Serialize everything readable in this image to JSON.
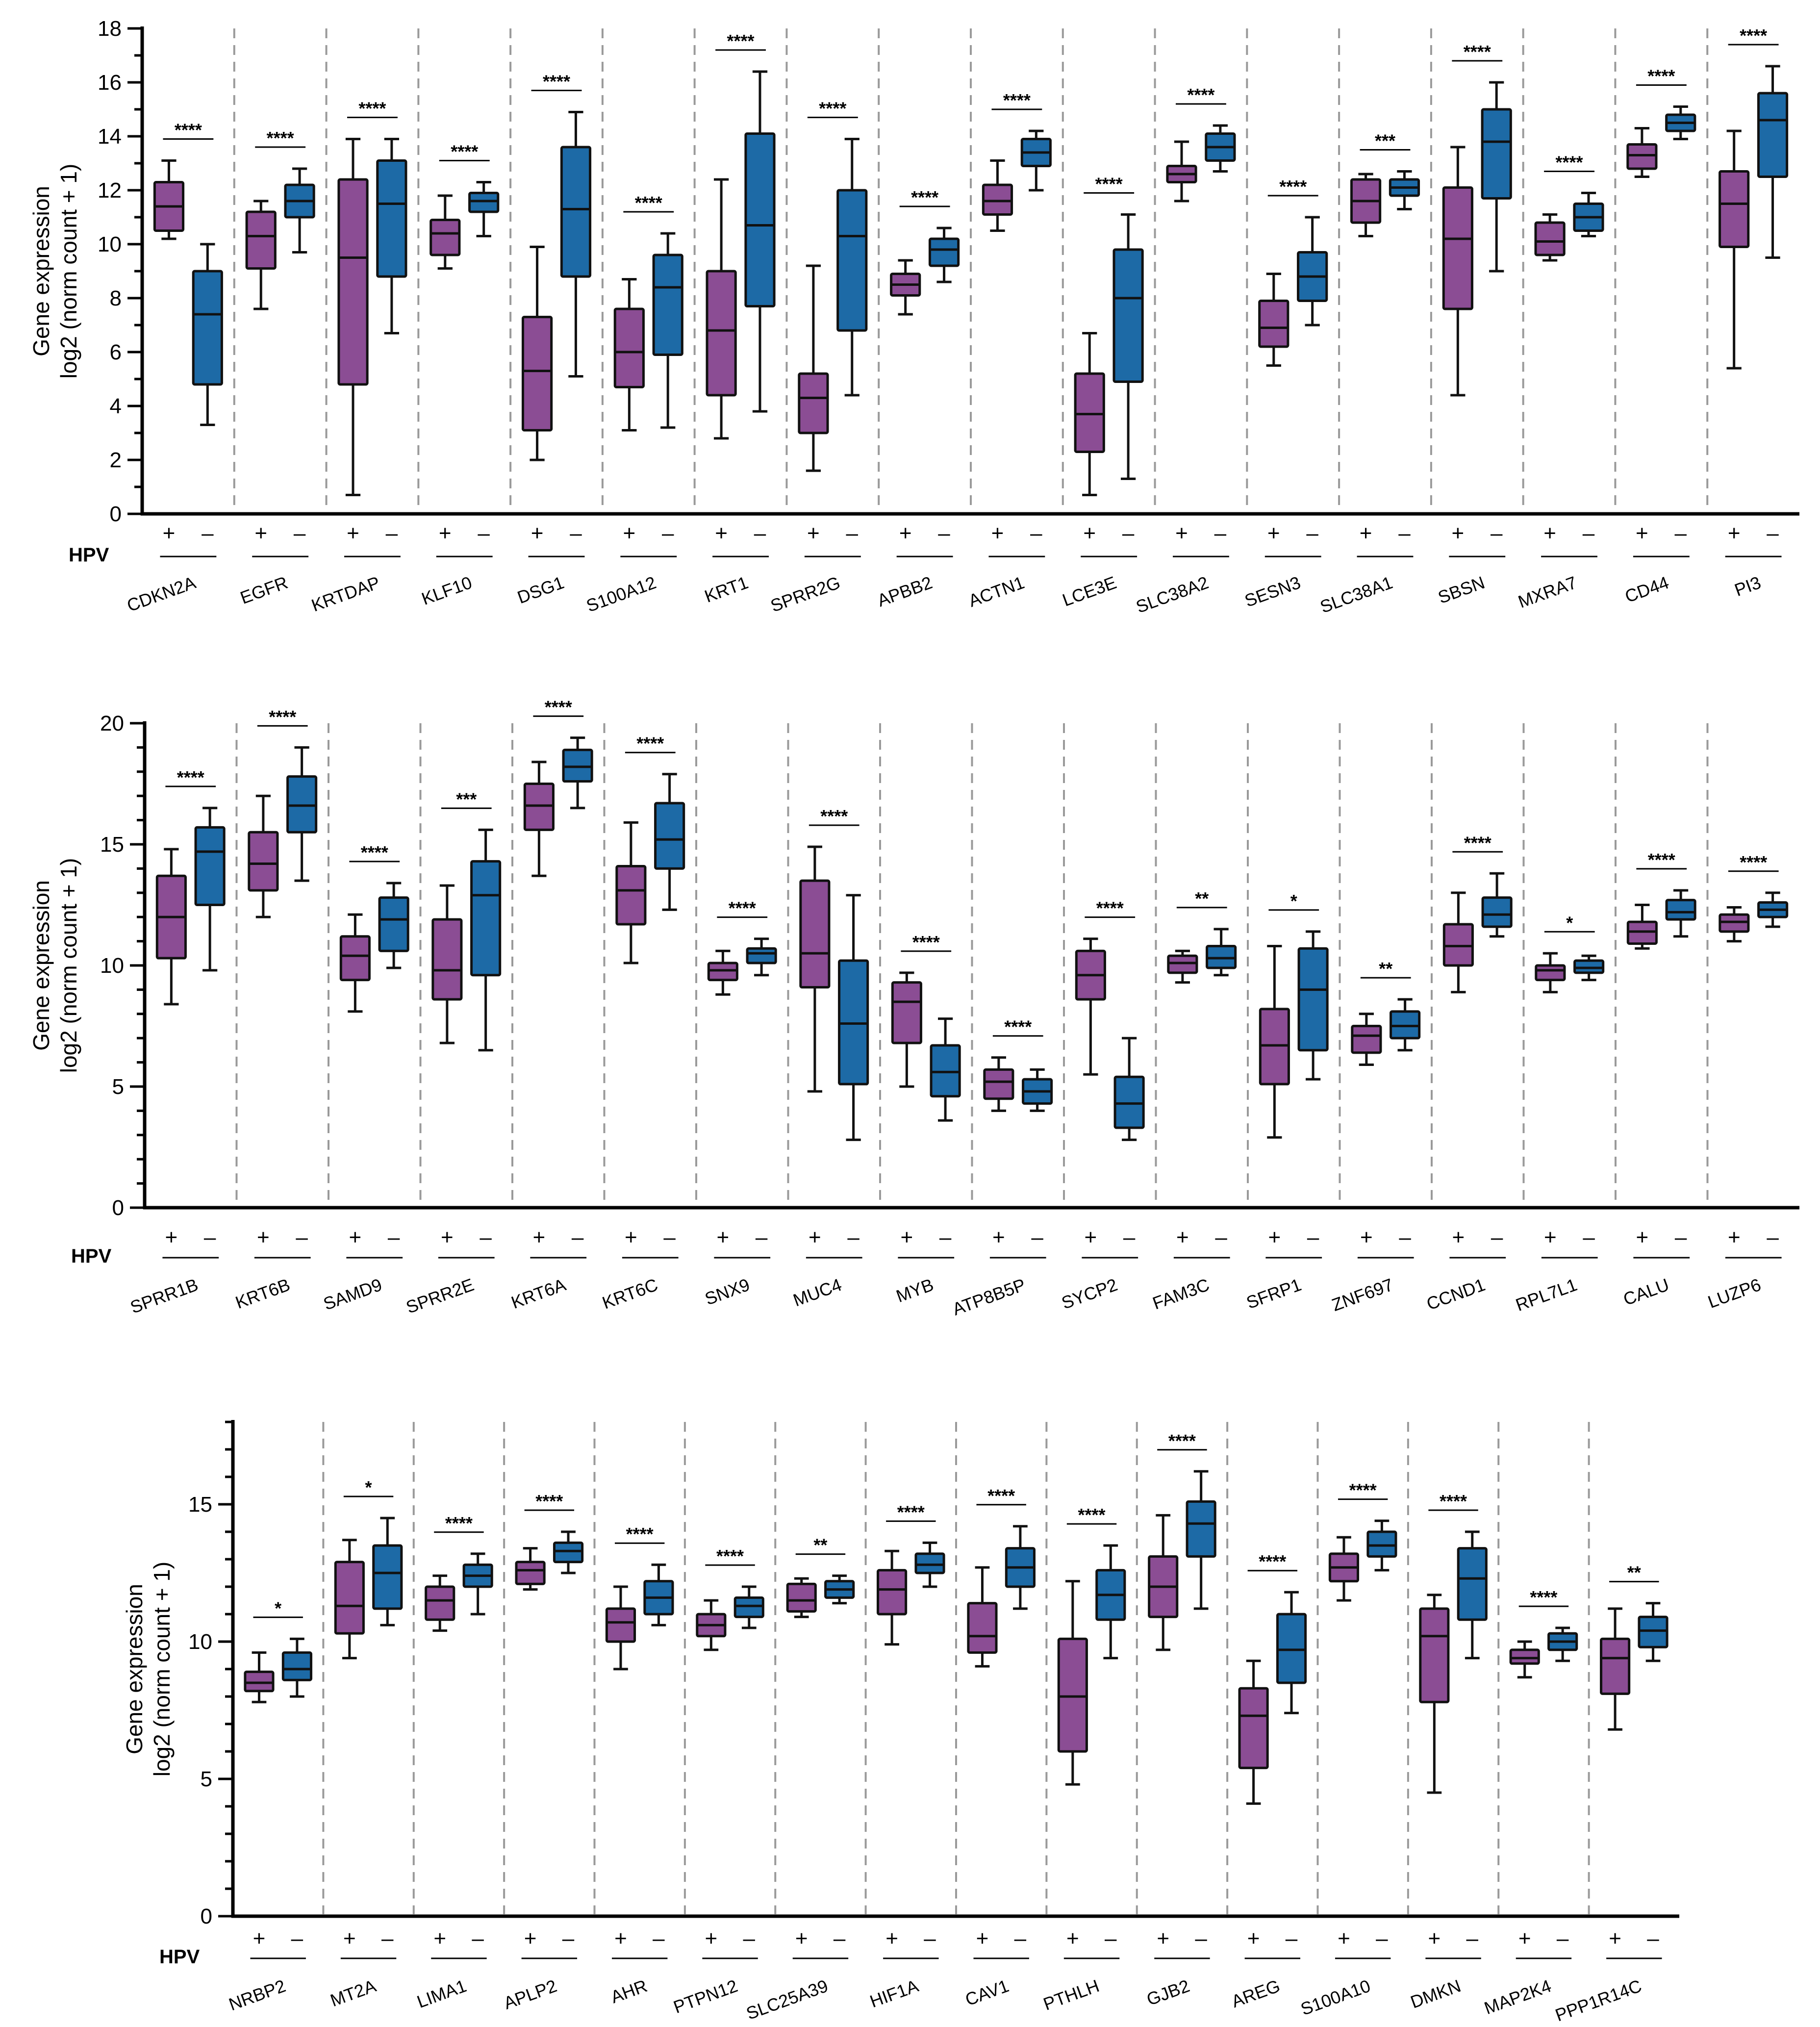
{
  "colors": {
    "hpv_pos": "#8b4d94",
    "hpv_neg": "#1d6aa6",
    "separator": "#9a9a9a",
    "axis": "#000000"
  },
  "labels": {
    "hpv": "HPV",
    "pos": "+",
    "neg": "–"
  },
  "chart_data": [
    {
      "type": "box",
      "ylabel": [
        "Gene expression",
        "log2 (norm count + 1)"
      ],
      "xlabel": "HPV",
      "ylim": [
        0,
        18
      ],
      "yticks": [
        0,
        2,
        4,
        6,
        8,
        10,
        12,
        14,
        16,
        18
      ],
      "minor_step": 1,
      "series_names": [
        "HPV +",
        "HPV −"
      ],
      "genes": [
        {
          "name": "CDKN2A",
          "sig": "****",
          "pos": [
            10.2,
            10.5,
            11.4,
            12.3,
            13.1
          ],
          "neg": [
            3.3,
            4.8,
            7.4,
            9.0,
            10.0
          ]
        },
        {
          "name": "EGFR",
          "sig": "****",
          "pos": [
            7.6,
            9.1,
            10.3,
            11.2,
            11.6
          ],
          "neg": [
            9.7,
            11.0,
            11.6,
            12.2,
            12.8
          ]
        },
        {
          "name": "KRTDAP",
          "sig": "****",
          "pos": [
            0.7,
            4.8,
            9.5,
            12.4,
            13.9
          ],
          "neg": [
            6.7,
            8.8,
            11.5,
            13.1,
            13.9
          ]
        },
        {
          "name": "KLF10",
          "sig": "****",
          "pos": [
            9.1,
            9.6,
            10.4,
            10.9,
            11.8
          ],
          "neg": [
            10.3,
            11.2,
            11.6,
            11.9,
            12.3
          ]
        },
        {
          "name": "DSG1",
          "sig": "****",
          "pos": [
            2.0,
            3.1,
            5.3,
            7.3,
            9.9
          ],
          "neg": [
            5.1,
            8.8,
            11.3,
            13.6,
            14.9
          ]
        },
        {
          "name": "S100A12",
          "sig": "****",
          "pos": [
            3.1,
            4.7,
            6.0,
            7.6,
            8.7
          ],
          "neg": [
            3.2,
            5.9,
            8.4,
            9.6,
            10.4
          ]
        },
        {
          "name": "KRT1",
          "sig": "****",
          "pos": [
            2.8,
            4.4,
            6.8,
            9.0,
            12.4
          ],
          "neg": [
            3.8,
            7.7,
            10.7,
            14.1,
            16.4
          ]
        },
        {
          "name": "SPRR2G",
          "sig": "****",
          "pos": [
            1.6,
            3.0,
            4.3,
            5.2,
            9.2
          ],
          "neg": [
            4.4,
            6.8,
            10.3,
            12.0,
            13.9
          ]
        },
        {
          "name": "APBB2",
          "sig": "****",
          "pos": [
            7.4,
            8.1,
            8.5,
            8.9,
            9.4
          ],
          "neg": [
            8.6,
            9.2,
            9.8,
            10.2,
            10.6
          ]
        },
        {
          "name": "ACTN1",
          "sig": "****",
          "pos": [
            10.5,
            11.1,
            11.6,
            12.2,
            13.1
          ],
          "neg": [
            12.0,
            12.9,
            13.4,
            13.9,
            14.2
          ]
        },
        {
          "name": "LCE3E",
          "sig": "****",
          "pos": [
            0.7,
            2.3,
            3.7,
            5.2,
            6.7
          ],
          "neg": [
            1.3,
            4.9,
            8.0,
            9.8,
            11.1
          ]
        },
        {
          "name": "SLC38A2",
          "sig": "****",
          "pos": [
            11.6,
            12.3,
            12.6,
            12.9,
            13.8
          ],
          "neg": [
            12.7,
            13.1,
            13.6,
            14.1,
            14.4
          ]
        },
        {
          "name": "SESN3",
          "sig": "****",
          "pos": [
            5.5,
            6.2,
            6.9,
            7.9,
            8.9
          ],
          "neg": [
            7.0,
            7.9,
            8.8,
            9.7,
            11.0
          ]
        },
        {
          "name": "SLC38A1",
          "sig": "***",
          "pos": [
            10.3,
            10.8,
            11.6,
            12.4,
            12.6
          ],
          "neg": [
            11.3,
            11.8,
            12.1,
            12.4,
            12.7
          ]
        },
        {
          "name": "SBSN",
          "sig": "****",
          "pos": [
            4.4,
            7.6,
            10.2,
            12.1,
            13.6
          ],
          "neg": [
            9.0,
            11.7,
            13.8,
            15.0,
            16.0
          ]
        },
        {
          "name": "MXRA7",
          "sig": "****",
          "pos": [
            9.4,
            9.6,
            10.1,
            10.8,
            11.1
          ],
          "neg": [
            10.3,
            10.5,
            11.0,
            11.5,
            11.9
          ]
        },
        {
          "name": "CD44",
          "sig": "****",
          "pos": [
            12.5,
            12.8,
            13.3,
            13.7,
            14.3
          ],
          "neg": [
            13.9,
            14.2,
            14.5,
            14.8,
            15.1
          ]
        },
        {
          "name": "PI3",
          "sig": "****",
          "pos": [
            5.4,
            9.9,
            11.5,
            12.7,
            14.2
          ],
          "neg": [
            9.5,
            12.5,
            14.6,
            15.6,
            16.6
          ]
        }
      ]
    },
    {
      "type": "box",
      "ylabel": [
        "Gene expression",
        "log2 (norm count + 1)"
      ],
      "xlabel": "HPV",
      "ylim": [
        0,
        20
      ],
      "yticks": [
        0,
        5,
        10,
        15,
        20
      ],
      "minor_step": 1,
      "series_names": [
        "HPV +",
        "HPV −"
      ],
      "genes": [
        {
          "name": "SPRR1B",
          "sig": "****",
          "pos": [
            8.4,
            10.3,
            12.0,
            13.7,
            14.8
          ],
          "neg": [
            9.8,
            12.5,
            14.7,
            15.7,
            16.5
          ]
        },
        {
          "name": "KRT6B",
          "sig": "****",
          "pos": [
            12.0,
            13.1,
            14.2,
            15.5,
            17.0
          ],
          "neg": [
            13.5,
            15.5,
            16.6,
            17.8,
            19.0
          ]
        },
        {
          "name": "SAMD9",
          "sig": "****",
          "pos": [
            8.1,
            9.4,
            10.4,
            11.2,
            12.1
          ],
          "neg": [
            9.9,
            10.6,
            11.9,
            12.8,
            13.4
          ]
        },
        {
          "name": "SPRR2E",
          "sig": "***",
          "pos": [
            6.8,
            8.6,
            9.8,
            11.9,
            13.3
          ],
          "neg": [
            6.5,
            9.6,
            12.9,
            14.3,
            15.6
          ]
        },
        {
          "name": "KRT6A",
          "sig": "****",
          "pos": [
            13.7,
            15.6,
            16.6,
            17.5,
            18.4
          ],
          "neg": [
            16.5,
            17.6,
            18.2,
            18.9,
            19.4
          ]
        },
        {
          "name": "KRT6C",
          "sig": "****",
          "pos": [
            10.1,
            11.7,
            13.1,
            14.1,
            15.9
          ],
          "neg": [
            12.3,
            14.0,
            15.2,
            16.7,
            17.9
          ]
        },
        {
          "name": "SNX9",
          "sig": "****",
          "pos": [
            8.8,
            9.4,
            9.8,
            10.1,
            10.6
          ],
          "neg": [
            9.6,
            10.1,
            10.5,
            10.7,
            11.1
          ]
        },
        {
          "name": "MUC4",
          "sig": "****",
          "pos": [
            4.8,
            9.1,
            10.5,
            13.5,
            14.9
          ],
          "neg": [
            2.8,
            5.1,
            7.6,
            10.2,
            12.9
          ]
        },
        {
          "name": "MYB",
          "sig": "****",
          "pos": [
            5.0,
            6.8,
            8.5,
            9.3,
            9.7
          ],
          "neg": [
            3.6,
            4.6,
            5.6,
            6.7,
            7.8
          ]
        },
        {
          "name": "ATP8B5P",
          "sig": "****",
          "pos": [
            4.0,
            4.5,
            5.2,
            5.7,
            6.2
          ],
          "neg": [
            4.0,
            4.3,
            4.8,
            5.3,
            5.7
          ]
        },
        {
          "name": "SYCP2",
          "sig": "****",
          "pos": [
            5.5,
            8.6,
            9.6,
            10.6,
            11.1
          ],
          "neg": [
            2.8,
            3.3,
            4.3,
            5.4,
            7.0
          ]
        },
        {
          "name": "FAM3C",
          "sig": "**",
          "pos": [
            9.3,
            9.7,
            10.1,
            10.4,
            10.6
          ],
          "neg": [
            9.6,
            9.9,
            10.3,
            10.8,
            11.5
          ]
        },
        {
          "name": "SFRP1",
          "sig": "*",
          "pos": [
            2.9,
            5.1,
            6.7,
            8.2,
            10.8
          ],
          "neg": [
            5.3,
            6.5,
            9.0,
            10.7,
            11.4
          ]
        },
        {
          "name": "ZNF697",
          "sig": "**",
          "pos": [
            5.9,
            6.4,
            7.1,
            7.5,
            8.0
          ],
          "neg": [
            6.5,
            7.0,
            7.5,
            8.1,
            8.6
          ]
        },
        {
          "name": "CCND1",
          "sig": "****",
          "pos": [
            8.9,
            10.0,
            10.8,
            11.7,
            13.0
          ],
          "neg": [
            11.2,
            11.6,
            12.1,
            12.8,
            13.8
          ]
        },
        {
          "name": "RPL7L1",
          "sig": "*",
          "pos": [
            8.9,
            9.4,
            9.8,
            10.0,
            10.5
          ],
          "neg": [
            9.4,
            9.7,
            9.9,
            10.2,
            10.4
          ]
        },
        {
          "name": "CALU",
          "sig": "****",
          "pos": [
            10.7,
            10.9,
            11.4,
            11.8,
            12.5
          ],
          "neg": [
            11.2,
            11.9,
            12.2,
            12.7,
            13.1
          ]
        },
        {
          "name": "LUZP6",
          "sig": "****",
          "pos": [
            11.0,
            11.4,
            11.8,
            12.1,
            12.4
          ],
          "neg": [
            11.6,
            12.0,
            12.3,
            12.6,
            13.0
          ]
        }
      ]
    },
    {
      "type": "box",
      "ylabel": [
        "Gene expression",
        "log2 (norm count + 1)"
      ],
      "xlabel": "HPV",
      "ylim": [
        0,
        18
      ],
      "yticks": [
        0,
        5,
        10,
        15
      ],
      "minor_step": 1,
      "series_names": [
        "HPV +",
        "HPV −"
      ],
      "genes": [
        {
          "name": "NRBP2",
          "sig": "*",
          "pos": [
            7.8,
            8.2,
            8.5,
            8.9,
            9.6
          ],
          "neg": [
            8.0,
            8.6,
            9.0,
            9.6,
            10.1
          ]
        },
        {
          "name": "MT2A",
          "sig": "*",
          "pos": [
            9.4,
            10.3,
            11.3,
            12.9,
            13.7
          ],
          "neg": [
            10.6,
            11.2,
            12.5,
            13.5,
            14.5
          ]
        },
        {
          "name": "LIMA1",
          "sig": "****",
          "pos": [
            10.4,
            10.8,
            11.5,
            12.0,
            12.4
          ],
          "neg": [
            11.0,
            12.0,
            12.4,
            12.8,
            13.2
          ]
        },
        {
          "name": "APLP2",
          "sig": "****",
          "pos": [
            11.9,
            12.1,
            12.6,
            12.9,
            13.4
          ],
          "neg": [
            12.5,
            12.9,
            13.3,
            13.6,
            14.0
          ]
        },
        {
          "name": "AHR",
          "sig": "****",
          "pos": [
            9.0,
            10.0,
            10.7,
            11.2,
            12.0
          ],
          "neg": [
            10.6,
            11.0,
            11.6,
            12.2,
            12.8
          ]
        },
        {
          "name": "PTPN12",
          "sig": "****",
          "pos": [
            9.7,
            10.2,
            10.6,
            11.0,
            11.5
          ],
          "neg": [
            10.5,
            10.9,
            11.3,
            11.6,
            12.0
          ]
        },
        {
          "name": "SLC25A39",
          "sig": "**",
          "pos": [
            10.9,
            11.1,
            11.5,
            12.1,
            12.3
          ],
          "neg": [
            11.4,
            11.6,
            11.9,
            12.2,
            12.4
          ]
        },
        {
          "name": "HIF1A",
          "sig": "****",
          "pos": [
            9.9,
            11.0,
            11.9,
            12.6,
            13.3
          ],
          "neg": [
            12.0,
            12.5,
            12.8,
            13.2,
            13.6
          ]
        },
        {
          "name": "CAV1",
          "sig": "****",
          "pos": [
            9.1,
            9.6,
            10.2,
            11.4,
            12.7
          ],
          "neg": [
            11.2,
            12.0,
            12.7,
            13.4,
            14.2
          ]
        },
        {
          "name": "PTHLH",
          "sig": "****",
          "pos": [
            4.8,
            6.0,
            8.0,
            10.1,
            12.2
          ],
          "neg": [
            9.4,
            10.8,
            11.7,
            12.6,
            13.5
          ]
        },
        {
          "name": "GJB2",
          "sig": "****",
          "pos": [
            9.7,
            10.9,
            12.0,
            13.1,
            14.6
          ],
          "neg": [
            11.2,
            13.1,
            14.3,
            15.1,
            16.2
          ]
        },
        {
          "name": "AREG",
          "sig": "****",
          "pos": [
            4.1,
            5.4,
            7.3,
            8.3,
            9.3
          ],
          "neg": [
            7.4,
            8.5,
            9.7,
            11.0,
            11.8
          ]
        },
        {
          "name": "S100A10",
          "sig": "****",
          "pos": [
            11.5,
            12.2,
            12.7,
            13.2,
            13.8
          ],
          "neg": [
            12.6,
            13.1,
            13.5,
            14.0,
            14.4
          ]
        },
        {
          "name": "DMKN",
          "sig": "****",
          "pos": [
            4.5,
            7.8,
            10.2,
            11.2,
            11.7
          ],
          "neg": [
            9.4,
            10.8,
            12.3,
            13.4,
            14.0
          ]
        },
        {
          "name": "MAP2K4",
          "sig": "****",
          "pos": [
            8.7,
            9.2,
            9.4,
            9.7,
            10.0
          ],
          "neg": [
            9.3,
            9.7,
            10.0,
            10.3,
            10.5
          ]
        },
        {
          "name": "PPP1R14C",
          "sig": "**",
          "pos": [
            6.8,
            8.1,
            9.4,
            10.1,
            11.2
          ],
          "neg": [
            9.3,
            9.8,
            10.4,
            10.9,
            11.4
          ]
        }
      ]
    }
  ]
}
